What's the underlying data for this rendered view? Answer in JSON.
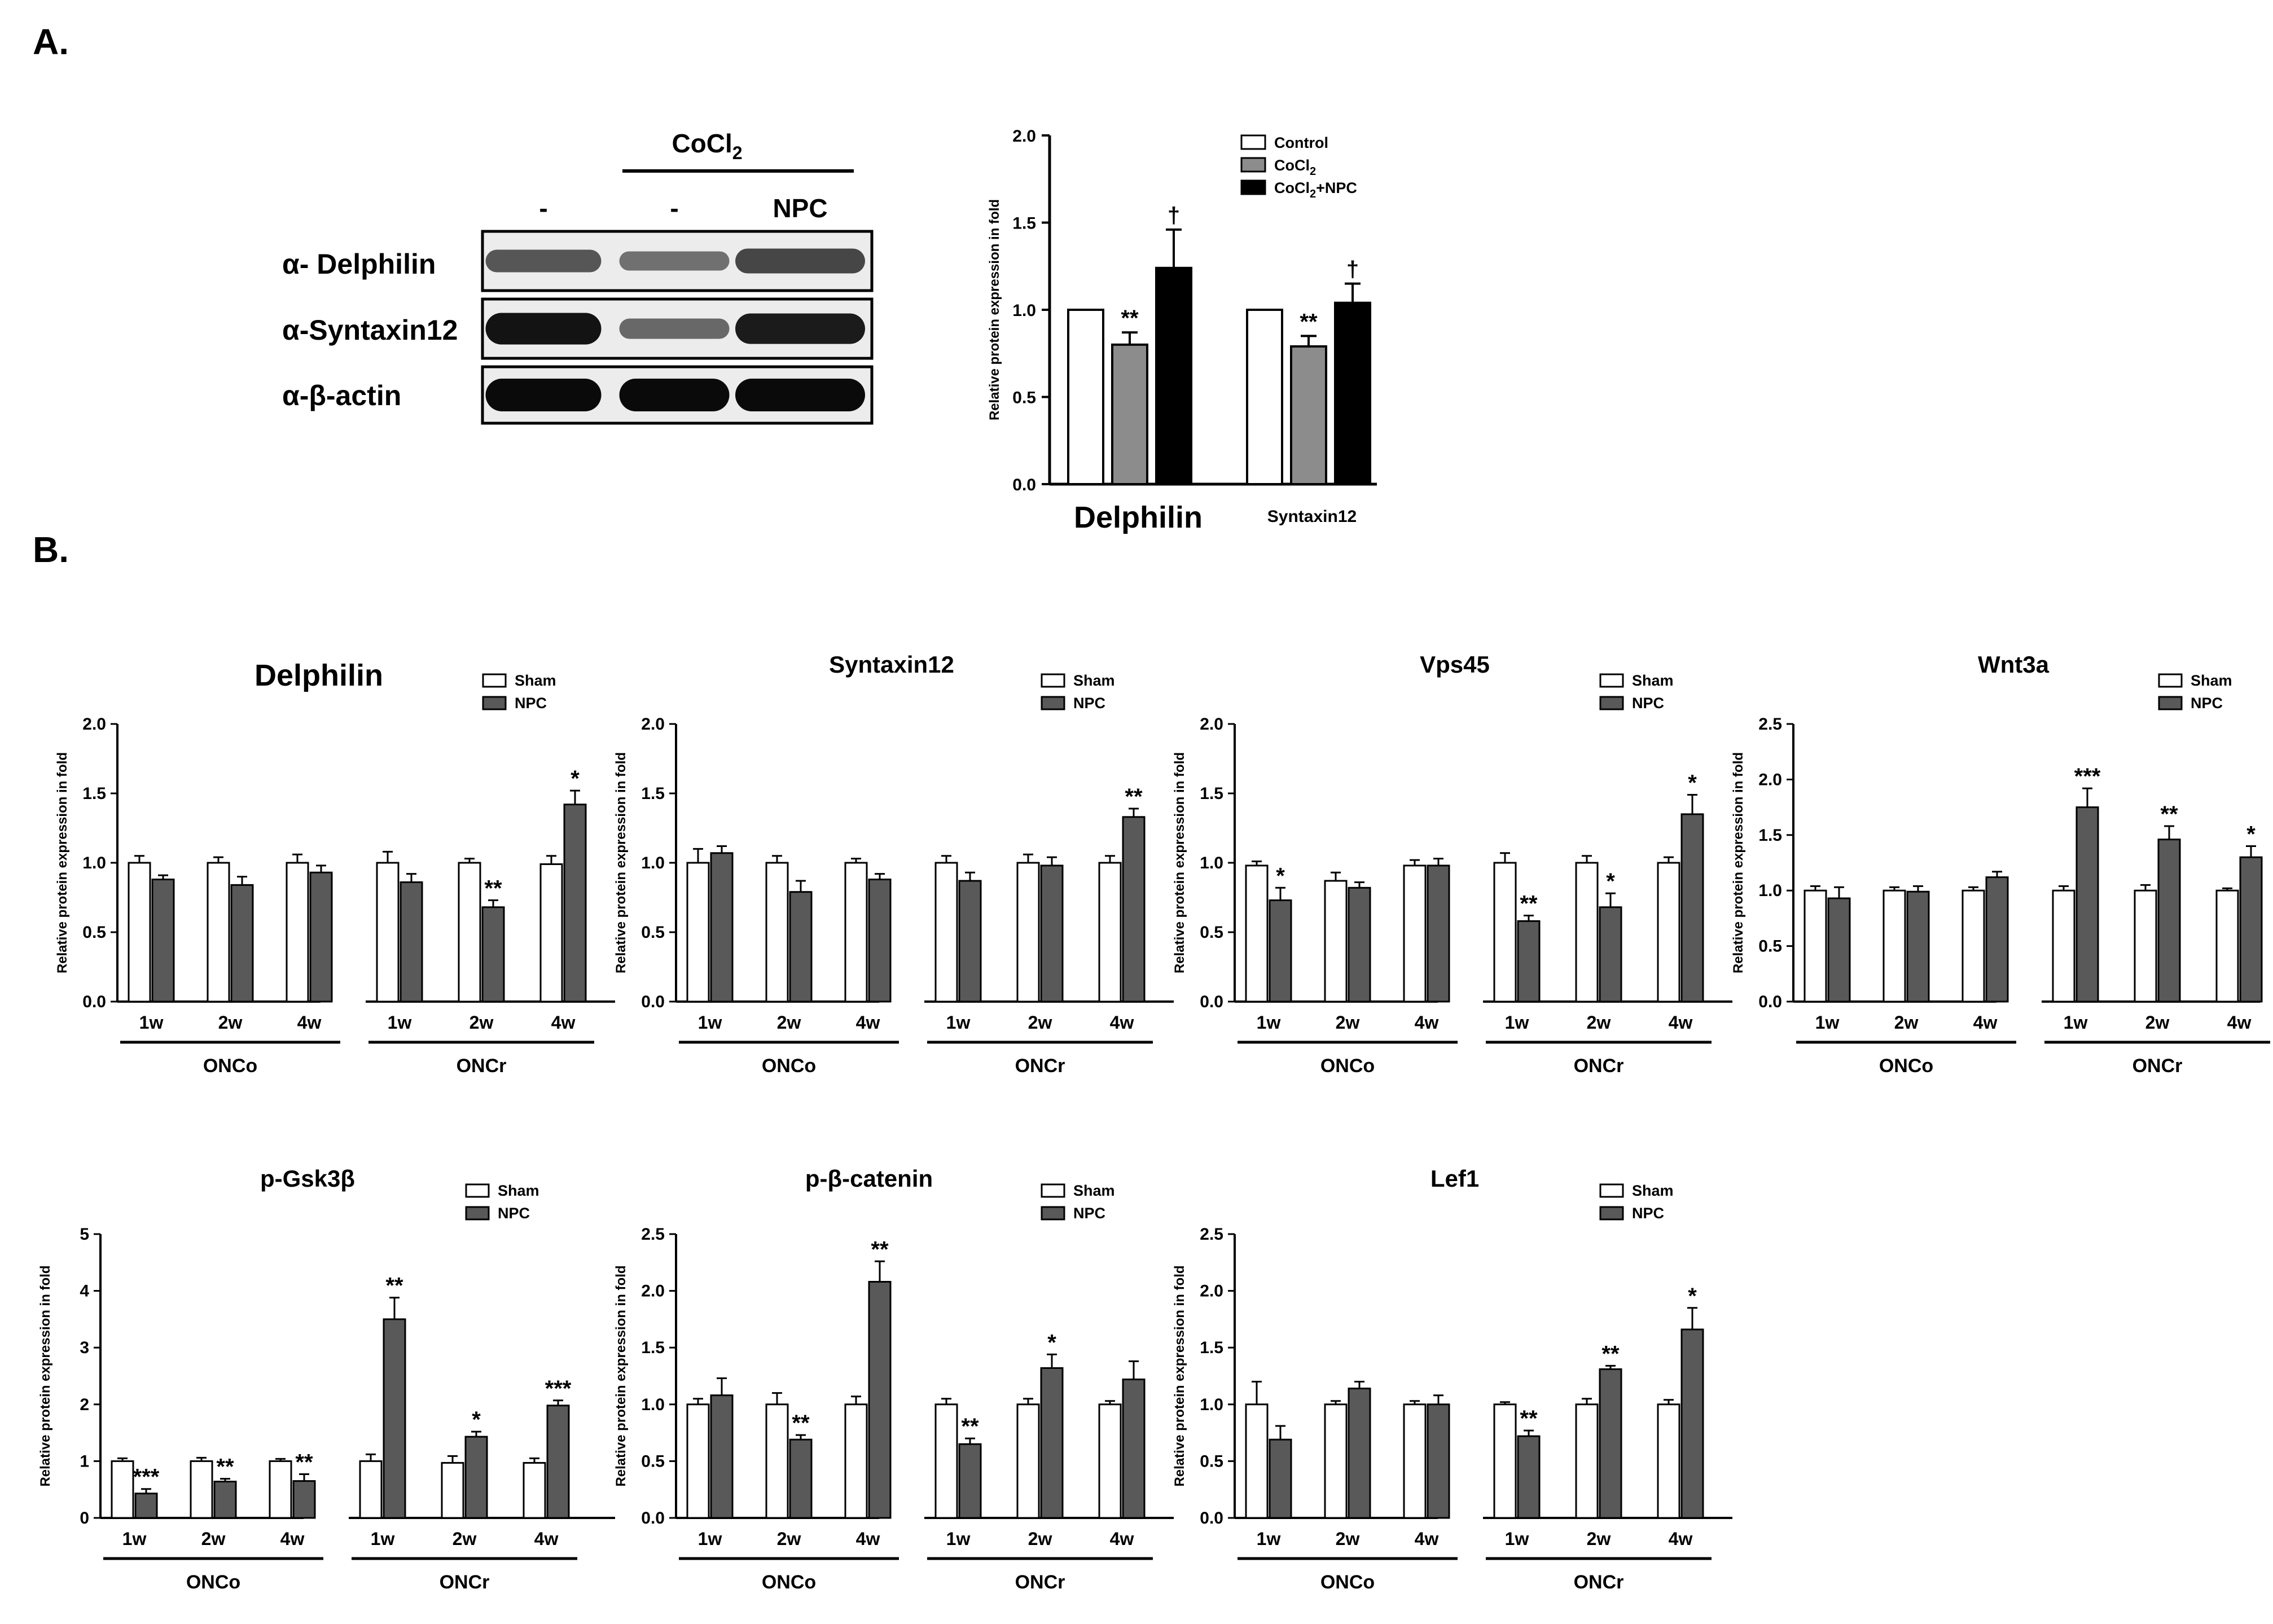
{
  "panels": {
    "a_label": "A.",
    "b_label": "B."
  },
  "blot": {
    "treatment_label": "CoCl",
    "treatment_sub": "2",
    "lane_labels": [
      "-",
      "-",
      "NPC"
    ],
    "rows": [
      {
        "label": "α- Delphilin",
        "intensity": [
          0.55,
          0.4,
          0.65
        ]
      },
      {
        "label": "α-Syntaxin12",
        "intensity": [
          0.95,
          0.45,
          0.9
        ]
      },
      {
        "label": "α-β-actin",
        "intensity": [
          1.0,
          1.0,
          1.0
        ]
      }
    ]
  },
  "chart_data": [
    {
      "id": "A",
      "type": "bar",
      "ylabel": "Relative protein expression in fold",
      "ylim": [
        0,
        2.0
      ],
      "yticks": [
        "0.0",
        "0.5",
        "1.0",
        "1.5",
        "2.0"
      ],
      "categories": [
        "Delphilin",
        "Syntaxin12"
      ],
      "legend": [
        {
          "name": "Control",
          "sub": "",
          "color": "#ffffff"
        },
        {
          "name": "CoCl",
          "sub": "2",
          "color": "#8c8c8c"
        },
        {
          "name": "CoCl",
          "sub": "2",
          "suffix": "+NPC",
          "color": "#000000"
        }
      ],
      "series": [
        {
          "name": "Control",
          "values": [
            1.0,
            1.0
          ],
          "err": [
            0,
            0
          ],
          "sig": [
            "",
            ""
          ]
        },
        {
          "name": "CoCl2",
          "values": [
            0.8,
            0.79
          ],
          "err": [
            0.07,
            0.06
          ],
          "sig": [
            "**",
            "**"
          ]
        },
        {
          "name": "CoCl2+NPC",
          "values": [
            1.24,
            1.04
          ],
          "err": [
            0.22,
            0.11
          ],
          "sig": [
            "†",
            "†"
          ]
        }
      ]
    },
    {
      "id": "delphilin",
      "type": "bar",
      "title": "Delphilin",
      "ylabel": "Relative protein expression in fold",
      "ylim": [
        0,
        2.0
      ],
      "yticks": [
        "0.0",
        "0.5",
        "1.0",
        "1.5",
        "2.0"
      ],
      "x_labels": [
        "1w",
        "2w",
        "4w",
        "1w",
        "2w",
        "4w"
      ],
      "groups": [
        "ONCo",
        "ONCr"
      ],
      "legend": [
        "Sham",
        "NPC"
      ],
      "sham": [
        1.0,
        1.0,
        1.0,
        1.0,
        1.0,
        0.99
      ],
      "sham_err": [
        0.05,
        0.04,
        0.06,
        0.08,
        0.03,
        0.06
      ],
      "npc": [
        0.88,
        0.84,
        0.93,
        0.86,
        0.68,
        1.42
      ],
      "npc_err": [
        0.03,
        0.06,
        0.05,
        0.06,
        0.05,
        0.1
      ],
      "sig": [
        "",
        "",
        "",
        "",
        "**",
        "*"
      ]
    },
    {
      "id": "syntaxin12",
      "type": "bar",
      "title": "Syntaxin12",
      "ylabel": "Relative protein expression in fold",
      "ylim": [
        0,
        2.0
      ],
      "yticks": [
        "0.0",
        "0.5",
        "1.0",
        "1.5",
        "2.0"
      ],
      "x_labels": [
        "1w",
        "2w",
        "4w",
        "1w",
        "2w",
        "4w"
      ],
      "groups": [
        "ONCo",
        "ONCr"
      ],
      "legend": [
        "Sham",
        "NPC"
      ],
      "sham": [
        1.0,
        1.0,
        1.0,
        1.0,
        1.0,
        1.0
      ],
      "sham_err": [
        0.1,
        0.05,
        0.03,
        0.05,
        0.06,
        0.05
      ],
      "npc": [
        1.07,
        0.79,
        0.88,
        0.87,
        0.98,
        1.33
      ],
      "npc_err": [
        0.05,
        0.08,
        0.04,
        0.06,
        0.06,
        0.06
      ],
      "sig": [
        "",
        "",
        "",
        "",
        "",
        "**"
      ]
    },
    {
      "id": "vps45",
      "type": "bar",
      "title": "Vps45",
      "ylabel": "Relative protein expression in fold",
      "ylim": [
        0,
        2.0
      ],
      "yticks": [
        "0.0",
        "0.5",
        "1.0",
        "1.5",
        "2.0"
      ],
      "x_labels": [
        "1w",
        "2w",
        "4w",
        "1w",
        "2w",
        "4w"
      ],
      "groups": [
        "ONCo",
        "ONCr"
      ],
      "legend": [
        "Sham",
        "NPC"
      ],
      "sham": [
        0.98,
        0.87,
        0.98,
        1.0,
        1.0,
        1.0
      ],
      "sham_err": [
        0.03,
        0.06,
        0.04,
        0.07,
        0.05,
        0.04
      ],
      "npc": [
        0.73,
        0.82,
        0.98,
        0.58,
        0.68,
        1.35
      ],
      "npc_err": [
        0.09,
        0.04,
        0.05,
        0.04,
        0.1,
        0.14
      ],
      "sig": [
        "*",
        "",
        "",
        "**",
        "*",
        "*"
      ]
    },
    {
      "id": "wnt3a",
      "type": "bar",
      "title": "Wnt3a",
      "ylabel": "Relative protein expression in fold",
      "ylim": [
        0,
        2.5
      ],
      "yticks": [
        "0.0",
        "0.5",
        "1.0",
        "1.5",
        "2.0",
        "2.5"
      ],
      "x_labels": [
        "1w",
        "2w",
        "4w",
        "1w",
        "2w",
        "4w"
      ],
      "groups": [
        "ONCo",
        "ONCr"
      ],
      "legend": [
        "Sham",
        "NPC"
      ],
      "sham": [
        1.0,
        1.0,
        1.0,
        1.0,
        1.0,
        1.0
      ],
      "sham_err": [
        0.04,
        0.03,
        0.03,
        0.04,
        0.05,
        0.02
      ],
      "npc": [
        0.93,
        0.99,
        1.12,
        1.75,
        1.46,
        1.3
      ],
      "npc_err": [
        0.1,
        0.05,
        0.05,
        0.17,
        0.12,
        0.1
      ],
      "sig": [
        "",
        "",
        "",
        "***",
        "**",
        "*"
      ]
    },
    {
      "id": "pgsk3b",
      "type": "bar",
      "title": "p-Gsk3β",
      "ylabel": "Relative protein expression in fold",
      "ylim": [
        0,
        5
      ],
      "yticks": [
        "0",
        "1",
        "2",
        "3",
        "4",
        "5"
      ],
      "x_labels": [
        "1w",
        "2w",
        "4w",
        "1w",
        "2w",
        "4w"
      ],
      "groups": [
        "ONCo",
        "ONCr"
      ],
      "legend": [
        "Sham",
        "NPC"
      ],
      "sham": [
        1.0,
        1.0,
        1.0,
        1.0,
        0.97,
        0.97
      ],
      "sham_err": [
        0.05,
        0.06,
        0.04,
        0.12,
        0.12,
        0.08
      ],
      "npc": [
        0.43,
        0.64,
        0.65,
        3.5,
        1.43,
        1.98
      ],
      "npc_err": [
        0.08,
        0.05,
        0.12,
        0.38,
        0.09,
        0.09
      ],
      "sig": [
        "***",
        "**",
        "**",
        "**",
        "*",
        "***"
      ]
    },
    {
      "id": "pbcatenin",
      "type": "bar",
      "title": "p-β-catenin",
      "ylabel": "Relative protein expression in fold",
      "ylim": [
        0,
        2.5
      ],
      "yticks": [
        "0.0",
        "0.5",
        "1.0",
        "1.5",
        "2.0",
        "2.5"
      ],
      "x_labels": [
        "1w",
        "2w",
        "4w",
        "1w",
        "2w",
        "4w"
      ],
      "groups": [
        "ONCo",
        "ONCr"
      ],
      "legend": [
        "Sham",
        "NPC"
      ],
      "sham": [
        1.0,
        1.0,
        1.0,
        1.0,
        1.0,
        1.0
      ],
      "sham_err": [
        0.05,
        0.1,
        0.07,
        0.05,
        0.05,
        0.03
      ],
      "npc": [
        1.08,
        0.69,
        2.08,
        0.65,
        1.32,
        1.22
      ],
      "npc_err": [
        0.15,
        0.04,
        0.18,
        0.05,
        0.12,
        0.16
      ],
      "sig": [
        "",
        "**",
        "**",
        "**",
        "*",
        ""
      ]
    },
    {
      "id": "lef1",
      "type": "bar",
      "title": "Lef1",
      "ylabel": "Relative protein expression in fold",
      "ylim": [
        0,
        2.5
      ],
      "yticks": [
        "0.0",
        "0.5",
        "1.0",
        "1.5",
        "2.0",
        "2.5"
      ],
      "x_labels": [
        "1w",
        "2w",
        "4w",
        "1w",
        "2w",
        "4w"
      ],
      "groups": [
        "ONCo",
        "ONCr"
      ],
      "legend": [
        "Sham",
        "NPC"
      ],
      "sham": [
        1.0,
        1.0,
        1.0,
        1.0,
        1.0,
        1.0
      ],
      "sham_err": [
        0.2,
        0.03,
        0.03,
        0.02,
        0.05,
        0.04
      ],
      "npc": [
        0.69,
        1.14,
        1.0,
        0.72,
        1.31,
        1.66
      ],
      "npc_err": [
        0.12,
        0.06,
        0.08,
        0.05,
        0.03,
        0.19
      ],
      "sig": [
        "",
        "",
        "",
        "**",
        "**",
        "*"
      ]
    }
  ]
}
